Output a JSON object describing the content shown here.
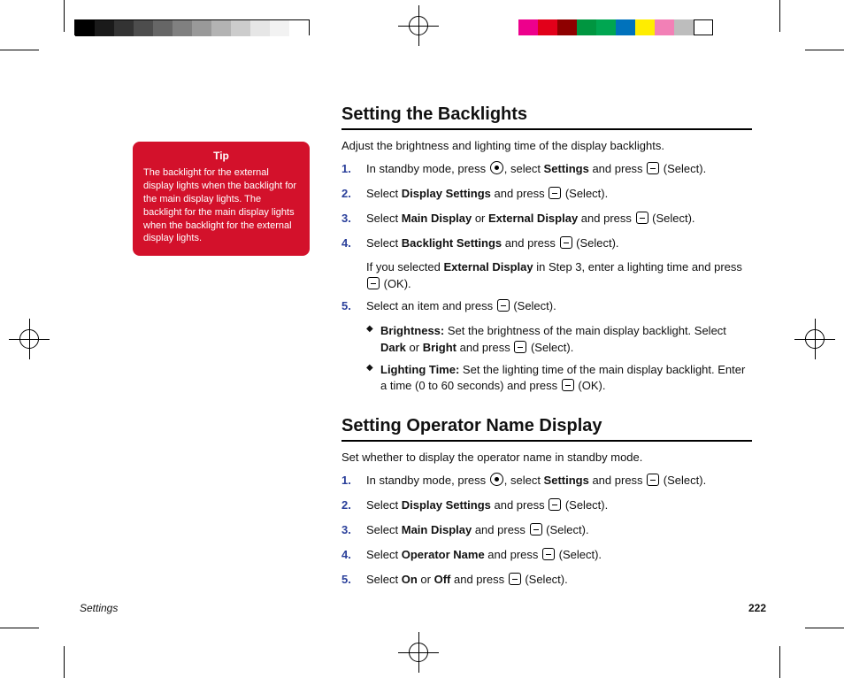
{
  "print": {
    "gray_swatches": [
      "#000000",
      "#1a1a1a",
      "#333333",
      "#4d4d4d",
      "#666666",
      "#808080",
      "#999999",
      "#b3b3b3",
      "#cccccc",
      "#e6e6e6",
      "#f2f2f2",
      "#ffffff"
    ],
    "color_swatches": [
      "#ed008c",
      "#e2001a",
      "#8e0000",
      "#009640",
      "#00a651",
      "#0072bc",
      "#ffed00",
      "#f280b6",
      "#bdbdbd",
      "#ffffff"
    ]
  },
  "tip": {
    "title": "Tip",
    "body": "The backlight for the external display lights when the backlight for the main display lights. The backlight for the main display lights when the backlight for the external display lights."
  },
  "section1": {
    "title": "Setting the Backlights",
    "intro": "Adjust the brightness and lighting time of the display backlights.",
    "steps": [
      {
        "pre": "In standby mode, press ",
        "key": "center",
        "mid": ", select ",
        "bold1": "Settings",
        "post": " and press ",
        "key2": "dash",
        "tail": " (Select)."
      },
      {
        "pre": "Select ",
        "bold1": "Display Settings",
        "post": " and press ",
        "key2": "dash",
        "tail": " (Select)."
      },
      {
        "pre": "Select ",
        "bold1": "Main Display",
        "mid": " or ",
        "bold2": "External Display",
        "post": " and press ",
        "key2": "dash",
        "tail": " (Select)."
      },
      {
        "pre": "Select ",
        "bold1": "Backlight Settings",
        "post": " and press ",
        "key2": "dash",
        "tail": " (Select)."
      }
    ],
    "sub_after_4": {
      "pre": "If you selected ",
      "bold": "External Display",
      "post": " in Step 3, enter a lighting time and press ",
      "tail": " (OK)."
    },
    "step5": {
      "pre": "Select an item and press ",
      "tail": " (Select)."
    },
    "bullets": [
      {
        "label": "Brightness:",
        "text_pre": " Set the brightness of the main display backlight. Select ",
        "b1": "Dark",
        "mid": " or ",
        "b2": "Bright",
        "post": " and press ",
        "tail": " (Select)."
      },
      {
        "label": "Lighting Time:",
        "text_pre": " Set the lighting time of the main display backlight. Enter a time (0 to 60 seconds) and press ",
        "tail": " (OK)."
      }
    ]
  },
  "section2": {
    "title": "Setting Operator Name Display",
    "intro": "Set whether to display the operator name in standby mode.",
    "steps": [
      {
        "pre": "In standby mode, press ",
        "key": "center",
        "mid": ", select ",
        "bold1": "Settings",
        "post": " and press ",
        "key2": "dash",
        "tail": " (Select)."
      },
      {
        "pre": "Select ",
        "bold1": "Display Settings",
        "post": " and press ",
        "key2": "dash",
        "tail": " (Select)."
      },
      {
        "pre": "Select ",
        "bold1": "Main Display",
        "post": " and press ",
        "key2": "dash",
        "tail": " (Select)."
      },
      {
        "pre": "Select ",
        "bold1": "Operator Name",
        "post": " and press ",
        "key2": "dash",
        "tail": " (Select)."
      },
      {
        "pre": "Select ",
        "bold1": "On",
        "mid": " or ",
        "bold2": "Off",
        "post": " and press ",
        "key2": "dash",
        "tail": " (Select)."
      }
    ]
  },
  "footer": {
    "chapter": "Settings",
    "page": "222"
  }
}
